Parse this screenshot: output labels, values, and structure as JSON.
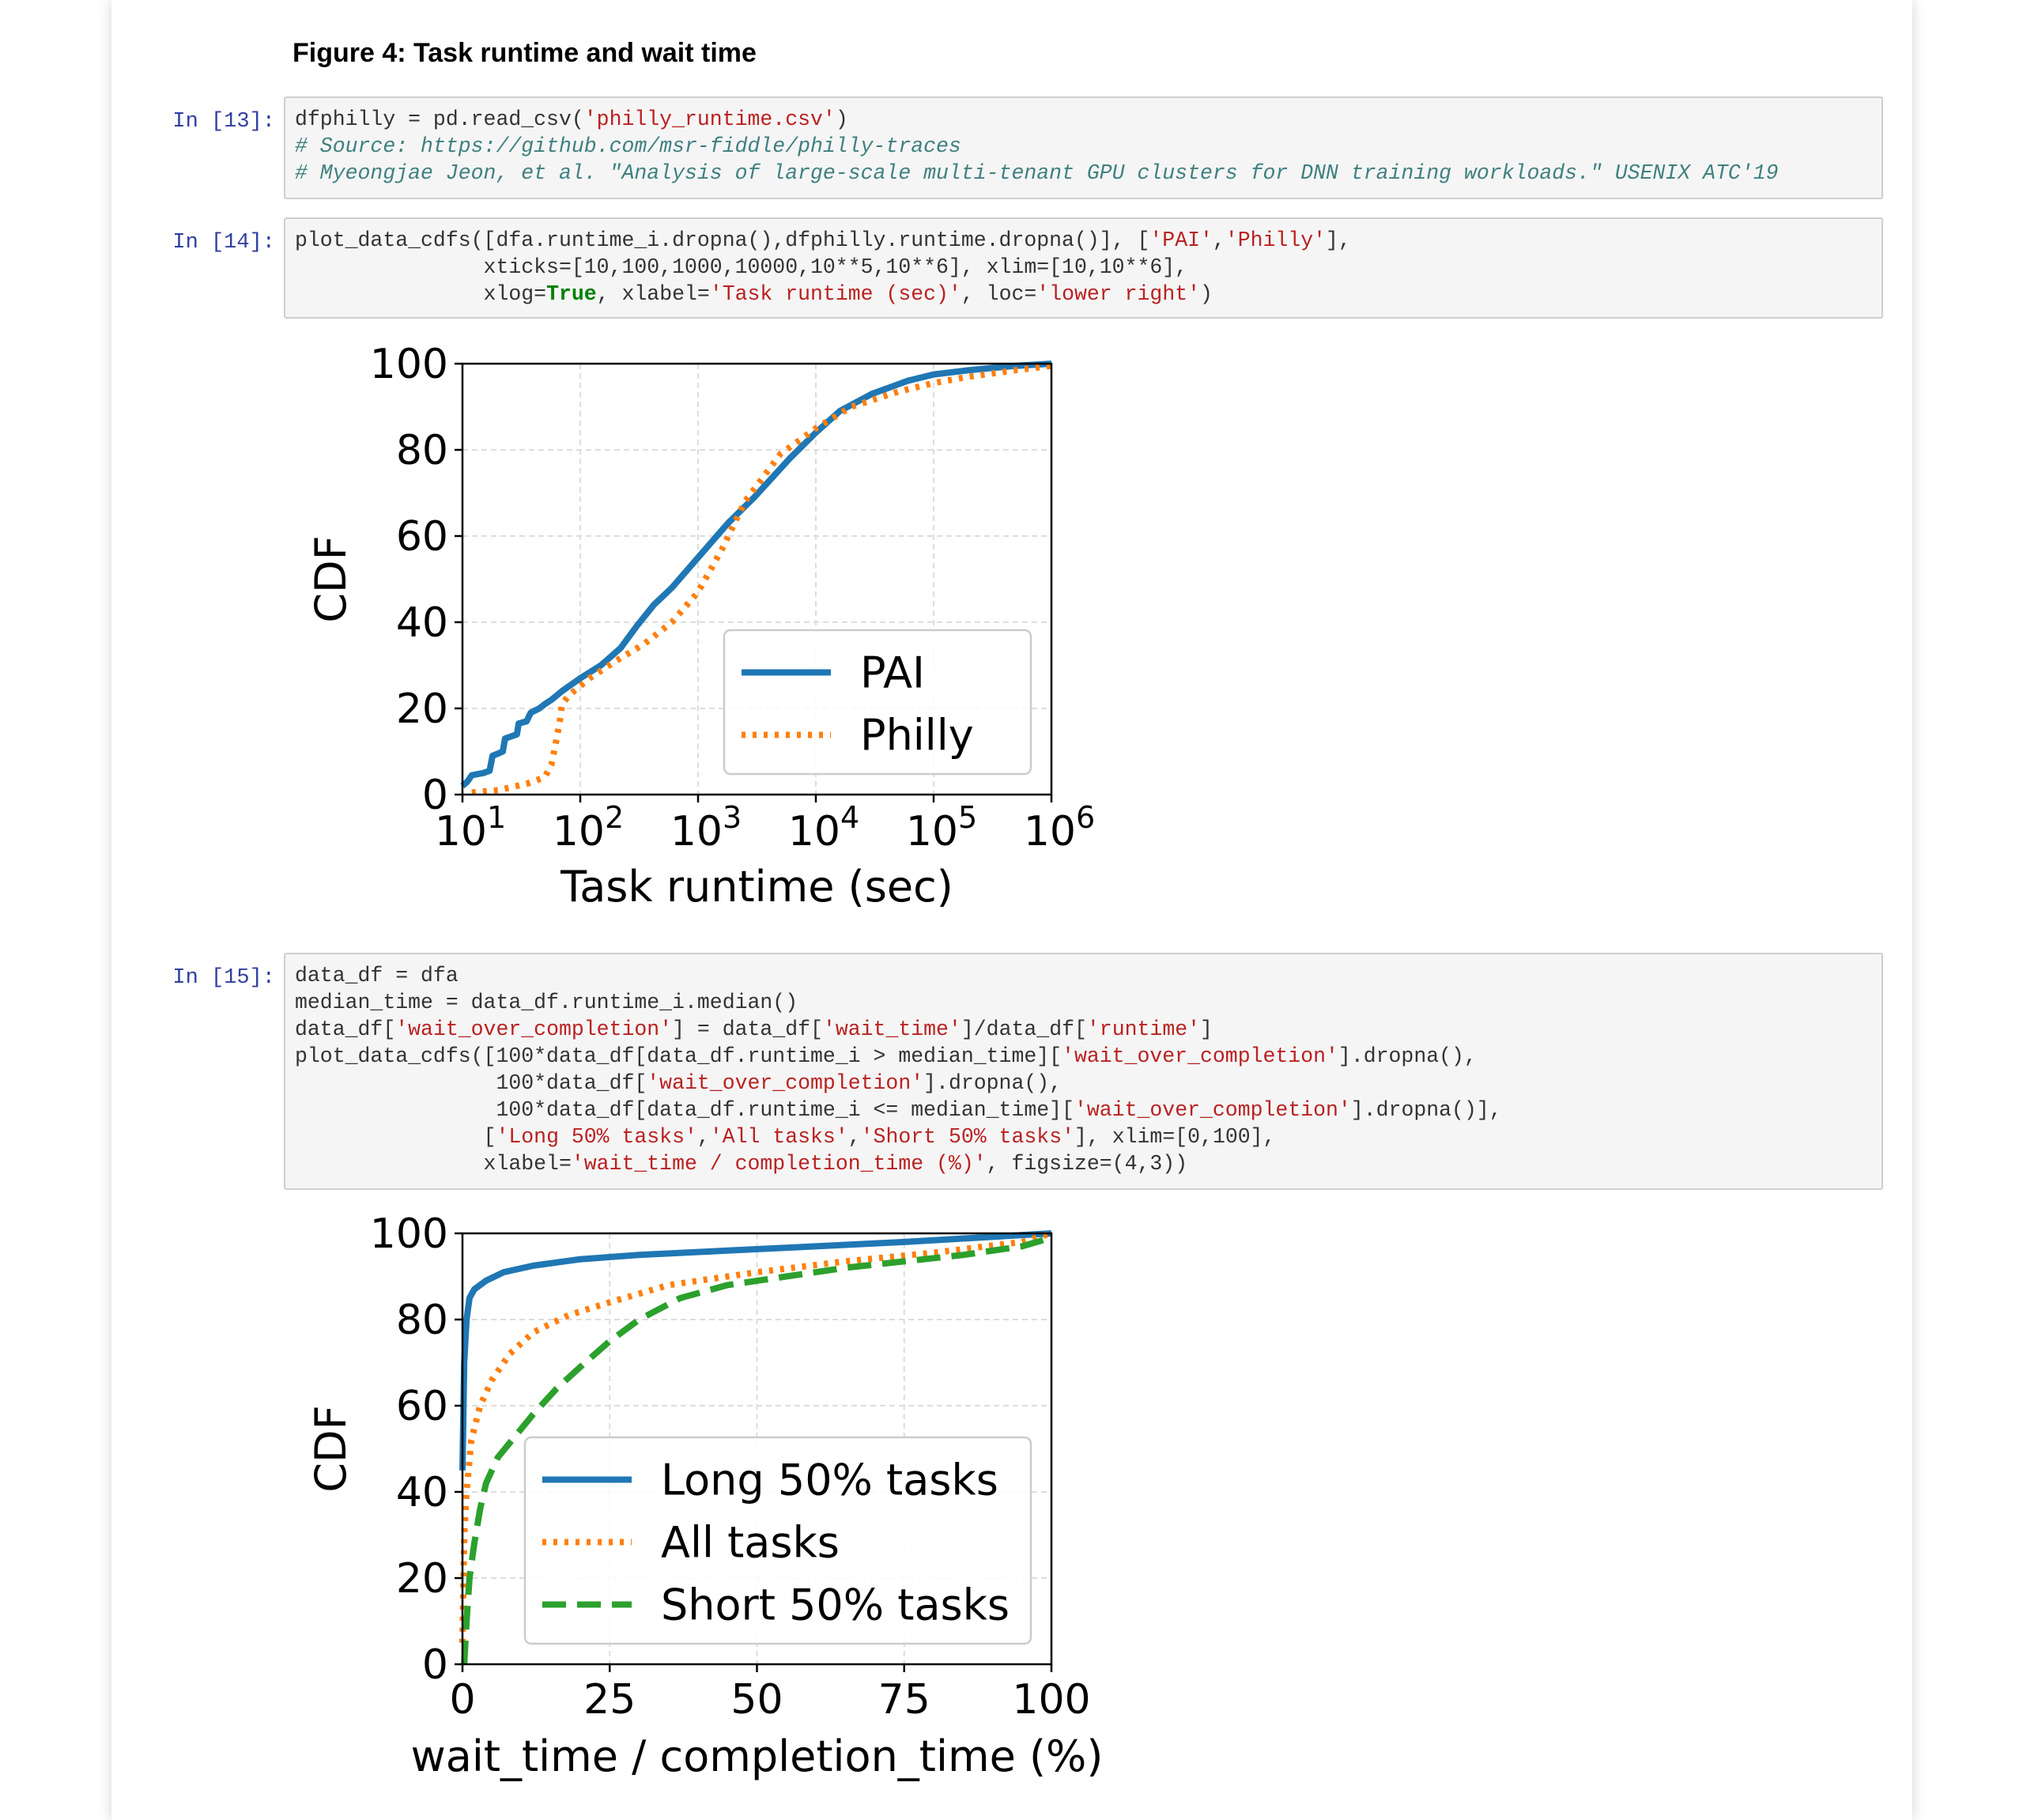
{
  "heading": "Figure 4: Task runtime and wait time",
  "cells": [
    {
      "prompt": "In [13]:"
    },
    {
      "prompt": "In [14]:"
    },
    {
      "prompt": "In [15]:"
    }
  ],
  "code": {
    "c13": {
      "l1a": "dfphilly = pd.read_csv(",
      "l1s": "'philly_runtime.csv'",
      "l1b": ")",
      "l2": "# Source: https://github.com/msr-fiddle/philly-traces",
      "l3": "# Myeongjae Jeon, et al. \"Analysis of large-scale multi-tenant GPU clusters for DNN training workloads.\" USENIX ATC'19"
    },
    "c14": {
      "l1a": "plot_data_cdfs([dfa.runtime_i.dropna(),dfphilly.runtime.dropna()], [",
      "l1s1": "'PAI'",
      "l1c": ",",
      "l1s2": "'Philly'",
      "l1b": "],",
      "l2": "               xticks=[10,100,1000,10000,10**5,10**6], xlim=[10,10**6],",
      "l3a": "               xlog=",
      "l3k": "True",
      "l3b": ", xlabel=",
      "l3s1": "'Task runtime (sec)'",
      "l3c": ", loc=",
      "l3s2": "'lower right'",
      "l3d": ")"
    },
    "c15": {
      "l1": "data_df = dfa",
      "l2": "median_time = data_df.runtime_i.median()",
      "l3a": "data_df[",
      "l3s1": "'wait_over_completion'",
      "l3b": "] = data_df[",
      "l3s2": "'wait_time'",
      "l3c": "]/data_df[",
      "l3s3": "'runtime'",
      "l3d": "]",
      "l4a": "plot_data_cdfs([100*data_df[data_df.runtime_i > median_time][",
      "l4s": "'wait_over_completion'",
      "l4b": "].dropna(),",
      "l5a": "                100*data_df[",
      "l5s": "'wait_over_completion'",
      "l5b": "].dropna(),",
      "l6a": "                100*data_df[data_df.runtime_i <= median_time][",
      "l6s": "'wait_over_completion'",
      "l6b": "].dropna()],",
      "l7a": "               [",
      "l7s1": "'Long 50% tasks'",
      "l7c1": ",",
      "l7s2": "'All tasks'",
      "l7c2": ",",
      "l7s3": "'Short 50% tasks'",
      "l7b": "], xlim=[0,100],",
      "l8a": "               xlabel=",
      "l8s": "'wait_time / completion_time (%)'",
      "l8b": ", figsize=(4,3))"
    }
  },
  "chart_data": [
    {
      "type": "line",
      "xlabel": "Task runtime (sec)",
      "ylabel": "CDF",
      "xscale": "log",
      "xlim": [
        10,
        1000000
      ],
      "ylim": [
        0,
        100
      ],
      "xtick_values": [
        10,
        100,
        1000,
        10000,
        100000,
        1000000
      ],
      "xtick_labels": [
        {
          "base": "10",
          "exp": "1"
        },
        {
          "base": "10",
          "exp": "2"
        },
        {
          "base": "10",
          "exp": "3"
        },
        {
          "base": "10",
          "exp": "4"
        },
        {
          "base": "10",
          "exp": "5"
        },
        {
          "base": "10",
          "exp": "6"
        }
      ],
      "ytick_labels": [
        "0",
        "20",
        "40",
        "60",
        "80",
        "100"
      ],
      "ytick_values": [
        0,
        20,
        40,
        60,
        80,
        100
      ],
      "grid": true,
      "legend": "lower right",
      "series": [
        {
          "name": "PAI",
          "color": "#1f77b4",
          "style": "solid",
          "points": [
            [
              10,
              2
            ],
            [
              11,
              3
            ],
            [
              12,
              4.5
            ],
            [
              15,
              5
            ],
            [
              17,
              5.5
            ],
            [
              18,
              9
            ],
            [
              20,
              9.5
            ],
            [
              22,
              10
            ],
            [
              23,
              13
            ],
            [
              26,
              13.5
            ],
            [
              29,
              14
            ],
            [
              30,
              16.5
            ],
            [
              35,
              17
            ],
            [
              38,
              19
            ],
            [
              45,
              20
            ],
            [
              50,
              21
            ],
            [
              57,
              22
            ],
            [
              70,
              24
            ],
            [
              100,
              27
            ],
            [
              150,
              30
            ],
            [
              220,
              34
            ],
            [
              300,
              39
            ],
            [
              420,
              44
            ],
            [
              600,
              48
            ],
            [
              1000,
              55
            ],
            [
              1800,
              63
            ],
            [
              3000,
              69
            ],
            [
              6000,
              78
            ],
            [
              10000,
              84
            ],
            [
              16000,
              89
            ],
            [
              30000,
              93
            ],
            [
              60000,
              96
            ],
            [
              100000,
              97.5
            ],
            [
              200000,
              98.5
            ],
            [
              500000,
              99.5
            ],
            [
              1000000,
              100
            ]
          ]
        },
        {
          "name": "Philly",
          "color": "#ff7f0e",
          "style": "dotted",
          "points": [
            [
              12,
              0.5
            ],
            [
              20,
              1
            ],
            [
              35,
              2.5
            ],
            [
              50,
              4
            ],
            [
              57,
              7
            ],
            [
              62,
              12
            ],
            [
              67,
              17
            ],
            [
              70,
              21
            ],
            [
              80,
              23
            ],
            [
              120,
              27
            ],
            [
              200,
              31
            ],
            [
              350,
              35
            ],
            [
              600,
              40
            ],
            [
              1000,
              47
            ],
            [
              1600,
              57
            ],
            [
              2500,
              68
            ],
            [
              5000,
              79
            ],
            [
              10000,
              85
            ],
            [
              20000,
              90
            ],
            [
              50000,
              93.5
            ],
            [
              100000,
              95.5
            ],
            [
              200000,
              97
            ],
            [
              500000,
              98.5
            ],
            [
              1000000,
              99.5
            ]
          ]
        }
      ]
    },
    {
      "type": "line",
      "xlabel": "wait_time / completion_time (%)",
      "ylabel": "CDF",
      "xlim": [
        0,
        100
      ],
      "ylim": [
        0,
        100
      ],
      "xtick_values": [
        0,
        25,
        50,
        75,
        100
      ],
      "xtick_labels": [
        "0",
        "25",
        "50",
        "75",
        "100"
      ],
      "ytick_labels": [
        "0",
        "20",
        "40",
        "60",
        "80",
        "100"
      ],
      "ytick_values": [
        0,
        20,
        40,
        60,
        80,
        100
      ],
      "grid": true,
      "legend": "lower right",
      "series": [
        {
          "name": "Long 50% tasks",
          "color": "#1f77b4",
          "style": "solid",
          "points": [
            [
              0,
              45
            ],
            [
              0.3,
              70
            ],
            [
              0.7,
              80
            ],
            [
              1.2,
              85
            ],
            [
              2,
              87
            ],
            [
              4,
              89
            ],
            [
              7,
              91
            ],
            [
              12,
              92.5
            ],
            [
              20,
              94
            ],
            [
              30,
              95
            ],
            [
              45,
              96
            ],
            [
              60,
              97
            ],
            [
              75,
              98
            ],
            [
              90,
              99.2
            ],
            [
              100,
              100
            ]
          ]
        },
        {
          "name": "All tasks",
          "color": "#ff7f0e",
          "style": "dotted",
          "points": [
            [
              0,
              5
            ],
            [
              0.3,
              30
            ],
            [
              0.7,
              40
            ],
            [
              1.5,
              52
            ],
            [
              3,
              60
            ],
            [
              5,
              66
            ],
            [
              8,
              72
            ],
            [
              12,
              77
            ],
            [
              18,
              81
            ],
            [
              25,
              84
            ],
            [
              35,
              88
            ],
            [
              50,
              91
            ],
            [
              65,
              93.5
            ],
            [
              80,
              95.5
            ],
            [
              95,
              98
            ],
            [
              100,
              100
            ]
          ]
        },
        {
          "name": "Short 50% tasks",
          "color": "#2ca02c",
          "style": "dashed",
          "points": [
            [
              0.3,
              0
            ],
            [
              0.7,
              10
            ],
            [
              1.2,
              20
            ],
            [
              2,
              28
            ],
            [
              3,
              36
            ],
            [
              4,
              42
            ],
            [
              6,
              48
            ],
            [
              9,
              53
            ],
            [
              12,
              58
            ],
            [
              16,
              64
            ],
            [
              20,
              69
            ],
            [
              25,
              75
            ],
            [
              30,
              80
            ],
            [
              37,
              85
            ],
            [
              45,
              88
            ],
            [
              55,
              90
            ],
            [
              65,
              92
            ],
            [
              75,
              93.5
            ],
            [
              85,
              95
            ],
            [
              95,
              97
            ],
            [
              100,
              99
            ]
          ]
        }
      ]
    }
  ]
}
